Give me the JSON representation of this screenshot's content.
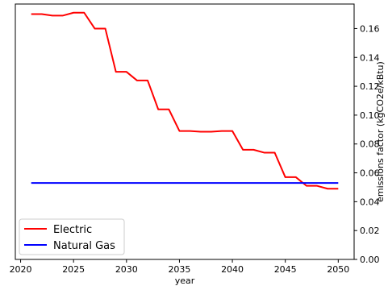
{
  "chart_data": {
    "type": "line",
    "title": "",
    "xlabel": "year",
    "ylabel": "emissions factor (kgCO2e/kBtu)",
    "xlim": [
      2019.5,
      2051.5
    ],
    "ylim": [
      0.0,
      0.177
    ],
    "x_ticks": [
      2020,
      2025,
      2030,
      2035,
      2040,
      2045,
      2050
    ],
    "y_ticks": [
      0.0,
      0.02,
      0.04,
      0.06,
      0.08,
      0.1,
      0.12,
      0.14,
      0.16
    ],
    "y_tick_labels": [
      "0.00",
      "0.02",
      "0.04",
      "0.06",
      "0.08",
      "0.10",
      "0.12",
      "0.14",
      "0.16"
    ],
    "y_axis_side": "right",
    "grid": false,
    "legend_position": "bottom-left",
    "x": [
      2021,
      2022,
      2023,
      2024,
      2025,
      2026,
      2027,
      2028,
      2029,
      2030,
      2031,
      2032,
      2033,
      2034,
      2035,
      2036,
      2037,
      2038,
      2039,
      2040,
      2041,
      2042,
      2043,
      2044,
      2045,
      2046,
      2047,
      2048,
      2049,
      2050
    ],
    "series": [
      {
        "name": "Electric",
        "color": "#ff0000",
        "values": [
          0.17,
          0.17,
          0.169,
          0.169,
          0.171,
          0.171,
          0.16,
          0.16,
          0.13,
          0.13,
          0.124,
          0.124,
          0.104,
          0.104,
          0.089,
          0.089,
          0.0885,
          0.0885,
          0.089,
          0.089,
          0.076,
          0.076,
          0.074,
          0.074,
          0.057,
          0.057,
          0.051,
          0.051,
          0.049,
          0.049
        ]
      },
      {
        "name": "Natural Gas",
        "color": "#0000ff",
        "values": [
          0.053,
          0.053,
          0.053,
          0.053,
          0.053,
          0.053,
          0.053,
          0.053,
          0.053,
          0.053,
          0.053,
          0.053,
          0.053,
          0.053,
          0.053,
          0.053,
          0.053,
          0.053,
          0.053,
          0.053,
          0.053,
          0.053,
          0.053,
          0.053,
          0.053,
          0.053,
          0.053,
          0.053,
          0.053,
          0.053
        ]
      }
    ]
  }
}
